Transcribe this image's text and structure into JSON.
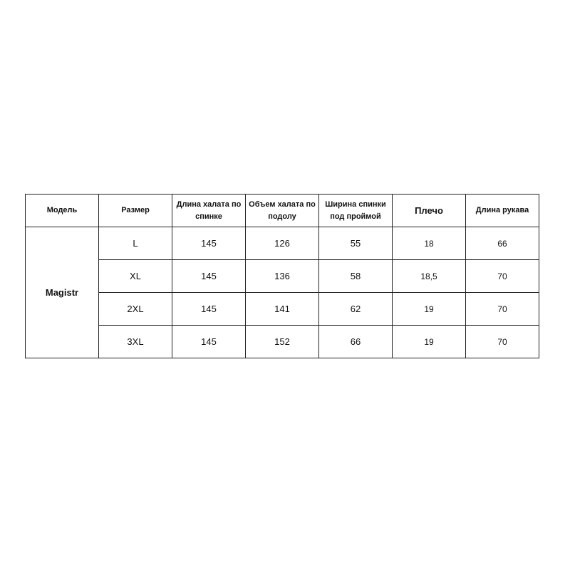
{
  "table": {
    "headers": [
      "Модель",
      "Размер",
      "Длина халата по спинке",
      "Объем халата по подолу",
      "Ширина спинки под проймой",
      "Плечо",
      "Длина рукава"
    ],
    "model": "Magistr",
    "rows": [
      [
        "L",
        "145",
        "126",
        "55",
        "18",
        "66"
      ],
      [
        "XL",
        "145",
        "136",
        "58",
        "18,5",
        "70"
      ],
      [
        "2XL",
        "145",
        "141",
        "62",
        "19",
        "70"
      ],
      [
        "3XL",
        "145",
        "152",
        "66",
        "19",
        "70"
      ]
    ]
  }
}
